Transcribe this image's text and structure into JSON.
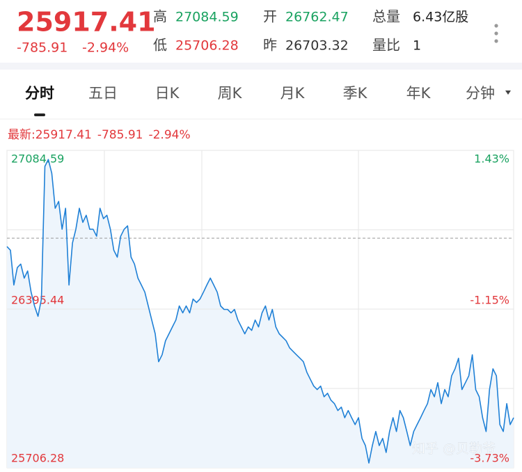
{
  "header": {
    "price": "25917.41",
    "change": "-785.91",
    "percent": "-2.94%",
    "stats": [
      {
        "label": "高",
        "value": "27084.59"
      },
      {
        "label": "开",
        "value": "26762.47"
      },
      {
        "label": "总量",
        "value": "6.43亿股"
      },
      {
        "label": "低",
        "value": "25706.28"
      },
      {
        "label": "昨",
        "value": "26703.32"
      },
      {
        "label": "量比",
        "value": "1"
      }
    ]
  },
  "tabs": [
    "分时",
    "五日",
    "日K",
    "周K",
    "月K",
    "季K",
    "年K",
    "分钟"
  ],
  "latest": {
    "label": "最新:",
    "price": "25917.41",
    "change": "-785.91",
    "percent": "-2.94%"
  },
  "watermark": "知乎 @贝勒爷",
  "chart_data": {
    "type": "line",
    "color": "#1f80d6",
    "ylim": [
      25706.28,
      27084.59
    ],
    "yticks": [
      25706.28,
      26395.44,
      27084.59
    ],
    "y2lim": [
      -3.73,
      1.43
    ],
    "y2ticks": [
      {
        "value": -3.73,
        "label": "-3.73%"
      },
      {
        "value": -1.15,
        "label": "-1.15%"
      },
      {
        "value": 1.43,
        "label": "1.43%"
      }
    ],
    "reference_line": 26703.32,
    "grid": true,
    "values": [
      26667,
      26651,
      26500,
      26576,
      26591,
      26530,
      26561,
      26469,
      26409,
      26364,
      26439,
      27015,
      27045,
      26985,
      26833,
      26863,
      26742,
      26833,
      26500,
      26682,
      26742,
      26833,
      26772,
      26803,
      26742,
      26742,
      26712,
      26833,
      26788,
      26803,
      26742,
      26651,
      26621,
      26712,
      26742,
      26757,
      26621,
      26591,
      26530,
      26500,
      26469,
      26409,
      26348,
      26288,
      26167,
      26197,
      26258,
      26288,
      26318,
      26348,
      26409,
      26379,
      26409,
      26379,
      26439,
      26424,
      26439,
      26469,
      26500,
      26530,
      26500,
      26469,
      26409,
      26394,
      26394,
      26379,
      26394,
      26348,
      26318,
      26288,
      26318,
      26303,
      26348,
      26318,
      26379,
      26409,
      26348,
      26394,
      26318,
      26288,
      26273,
      26258,
      26227,
      26212,
      26197,
      26182,
      26167,
      26121,
      26091,
      26061,
      26046,
      26061,
      26015,
      26030,
      26000,
      25985,
      25955,
      25970,
      25924,
      25955,
      25924,
      25894,
      25924,
      25834,
      25803,
      25727,
      25803,
      25864,
      25803,
      25834,
      25773,
      25864,
      25924,
      25864,
      25955,
      25924,
      25864,
      25803,
      25864,
      25894,
      25924,
      25955,
      25985,
      26046,
      26015,
      26076,
      25985,
      26046,
      26015,
      26106,
      26136,
      26182,
      26046,
      26076,
      26106,
      26197,
      26046,
      26015,
      25924,
      25864,
      26046,
      26136,
      26106,
      25894,
      25864,
      25985,
      25894,
      25924
    ]
  }
}
